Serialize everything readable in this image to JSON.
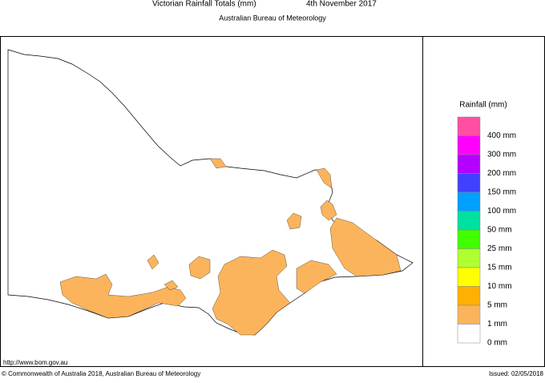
{
  "header": {
    "title": "Victorian Rainfall Totals (mm)",
    "date": "4th November 2017",
    "subtitle": "Australian Bureau of Meteorology"
  },
  "legend": {
    "title": "Rainfall (mm)",
    "items": [
      {
        "label": "",
        "color": "#ff4fa3"
      },
      {
        "label": "400 mm",
        "color": "#ff00ff"
      },
      {
        "label": "300 mm",
        "color": "#b400ff"
      },
      {
        "label": "200 mm",
        "color": "#4040ff"
      },
      {
        "label": "150 mm",
        "color": "#00a0ff"
      },
      {
        "label": "100 mm",
        "color": "#00e0a0"
      },
      {
        "label": "50 mm",
        "color": "#40ff00"
      },
      {
        "label": "25 mm",
        "color": "#b0ff30"
      },
      {
        "label": "15 mm",
        "color": "#ffff00"
      },
      {
        "label": "10 mm",
        "color": "#ffb000"
      },
      {
        "label": "5 mm",
        "color": "#fbb45c"
      },
      {
        "label": "1 mm",
        "color": "#ffffff"
      }
    ],
    "bottom_label": "0 mm"
  },
  "footer": {
    "url": "http://www.bom.gov.au",
    "copyright": "© Commonwealth of Australia 2018, Australian Bureau of Meteorology",
    "issued": "Issued: 02/05/2018"
  }
}
